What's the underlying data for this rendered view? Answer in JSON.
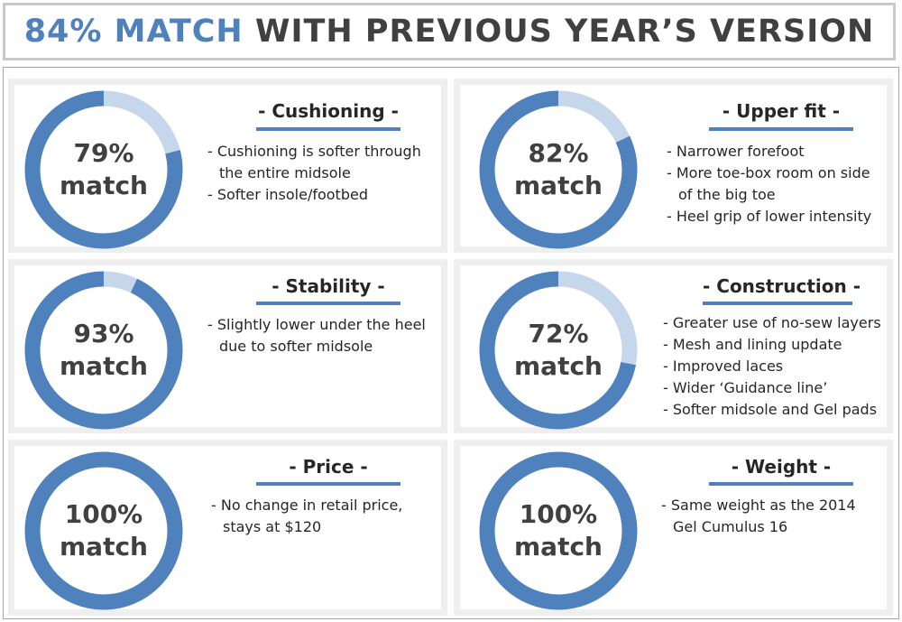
{
  "title": {
    "accent": "84% MATCH",
    "rest": " WITH PREVIOUS YEAR’S VERSION"
  },
  "colors": {
    "ring_main": "#4f81bd",
    "ring_remainder": "#c6d7ec",
    "panel_bg": "#efefef",
    "text": "#404040"
  },
  "panels": [
    {
      "heading": "- Cushioning -",
      "percent_label": "79%",
      "match_word": "match",
      "fraction": 0.79,
      "bullets": [
        "Cushioning is softer through",
        "the entire midsole",
        "Softer insole/footbed"
      ]
    },
    {
      "heading": "- Upper fit -",
      "percent_label": "82%",
      "match_word": "match",
      "fraction": 0.82,
      "bullets": [
        "Narrower forefoot",
        "More toe-box room on side",
        "of the big toe",
        "Heel grip of lower intensity"
      ]
    },
    {
      "heading": "- Stability -",
      "percent_label": "93%",
      "match_word": "match",
      "fraction": 0.93,
      "bullets": [
        "Slightly lower under the heel",
        "due to softer midsole"
      ]
    },
    {
      "heading": "- Construction -",
      "percent_label": "72%",
      "match_word": "match",
      "fraction": 0.72,
      "bullets": [
        "Greater use of no-sew layers",
        "Mesh and lining update",
        "Improved laces",
        "Wider ‘Guidance line’",
        "Softer midsole and Gel pads"
      ]
    },
    {
      "heading": "- Price -",
      "percent_label": "100%",
      "match_word": "match",
      "fraction": 1.0,
      "bullets": [
        "No change in retail price,",
        "stays at $120"
      ]
    },
    {
      "heading": "- Weight -",
      "percent_label": "100%",
      "match_word": "match",
      "fraction": 1.0,
      "bullets": [
        "Same weight as the 2014",
        "Gel Cumulus 16"
      ]
    }
  ]
}
